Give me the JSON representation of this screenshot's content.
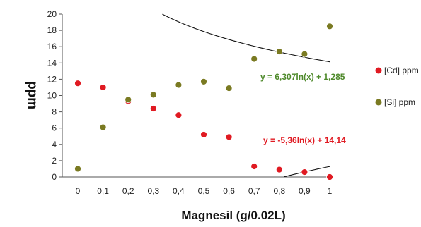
{
  "chart_data": {
    "type": "scatter",
    "xlabel": "Magnesil (g/0.02L)",
    "ylabel": "ppm",
    "x": [
      0,
      0.1,
      0.2,
      0.3,
      0.4,
      0.5,
      0.6,
      0.7,
      0.8,
      0.9,
      1
    ],
    "x_tick_labels": [
      "0",
      "0,1",
      "0,2",
      "0,3",
      "0,4",
      "0,5",
      "0,6",
      "0,7",
      "0,8",
      "0,9",
      "1"
    ],
    "ylim": [
      0,
      20
    ],
    "y_ticks": [
      0,
      2,
      4,
      6,
      8,
      10,
      12,
      14,
      16,
      18,
      20
    ],
    "legend_position": "right",
    "series": [
      {
        "name": "[Cd] ppm",
        "color": "#e01a22",
        "values": [
          11.5,
          11.0,
          9.3,
          8.4,
          7.6,
          5.2,
          4.9,
          1.3,
          0.9,
          0.6,
          0.0
        ],
        "trendline": {
          "type": "log",
          "a": -5.36,
          "b": 14.14,
          "equation": "y = -5,36ln(x) + 14,14",
          "color": "#e01a22"
        }
      },
      {
        "name": "[Si] ppm",
        "color": "#7a7a22",
        "values": [
          1.0,
          6.1,
          9.5,
          10.1,
          11.3,
          11.7,
          10.9,
          14.5,
          15.4,
          15.1,
          18.5
        ],
        "trendline": {
          "type": "log",
          "a": 6.307,
          "b": 1.285,
          "equation": "y = 6,307ln(x) + 1,285",
          "color": "#4f8a2c"
        }
      }
    ]
  }
}
